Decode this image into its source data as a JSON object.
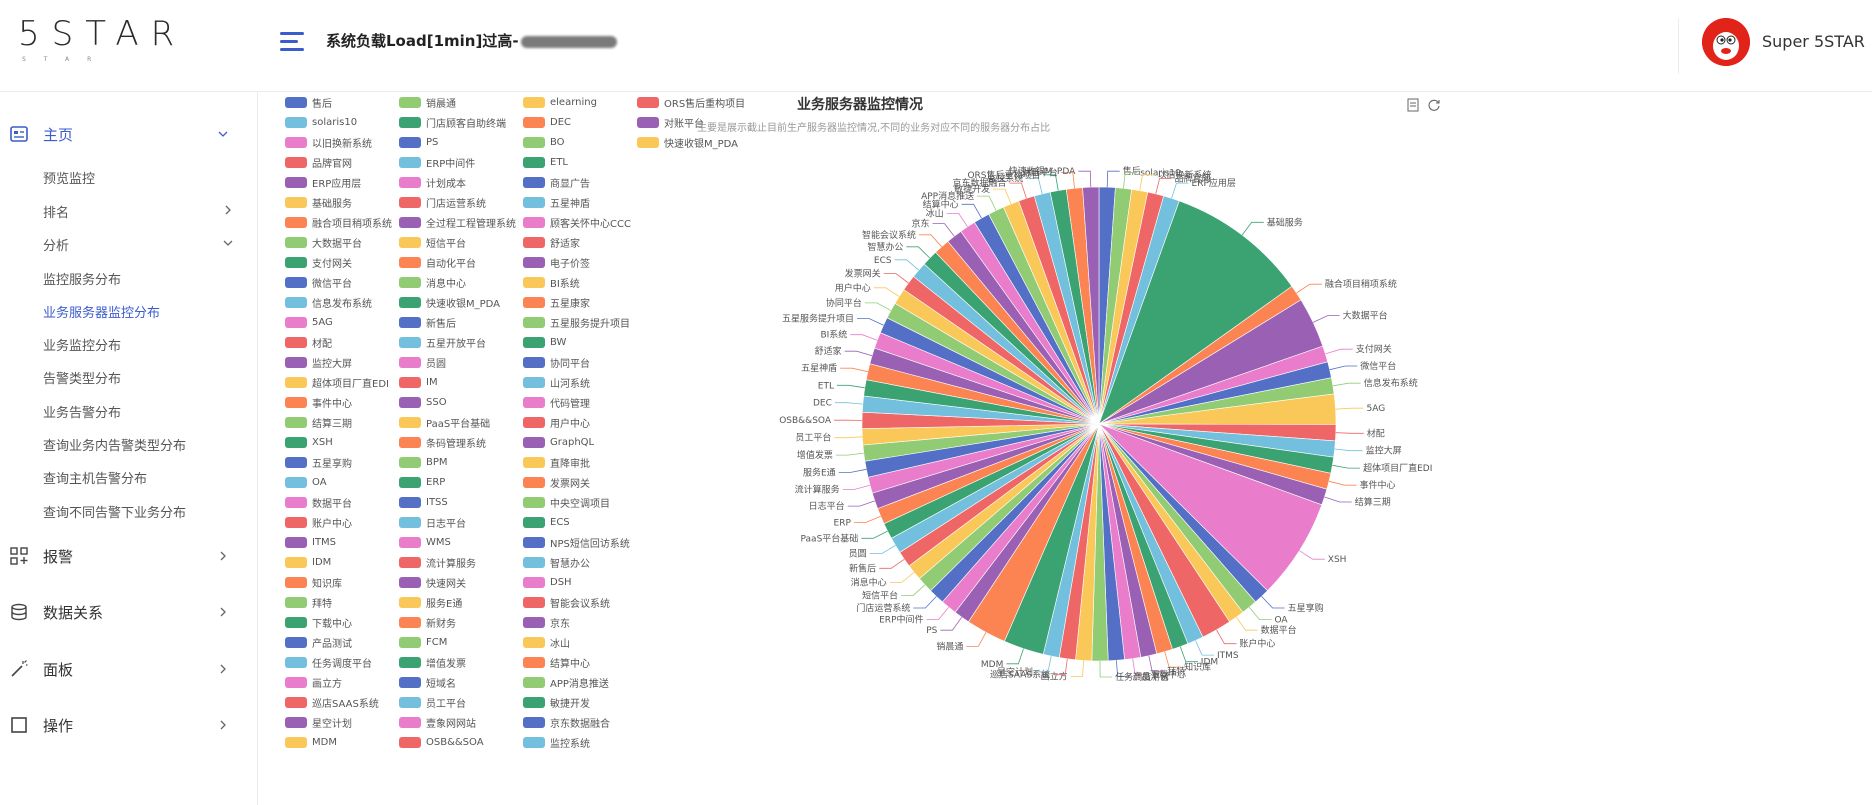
{
  "app": {
    "logo_text": "5STAR",
    "logo_sub": "STAR"
  },
  "header": {
    "alert_title": "系统负载Load[1min]过高-",
    "user_name": "Super 5STAR"
  },
  "sidebar": {
    "home_label": "主页",
    "home_items": [
      "预览监控",
      "排名",
      "分析"
    ],
    "analysis_items": [
      "监控服务分布",
      "业务服务器监控分布",
      "业务监控分布",
      "告警类型分布",
      "业务告警分布",
      "查询业务内告警类型分布",
      "查询主机告警分布",
      "查询不同告警下业务分布"
    ],
    "bottom": [
      "报警",
      "数据关系",
      "面板",
      "操作"
    ]
  },
  "chart_data": {
    "type": "pie",
    "title": "业务服务器监控情况",
    "subtitle": "主要是展示截止目前生产服务器监控情况,不同的业务对应不同的服务器分布占比",
    "labels": [
      "售后",
      "solaris10",
      "以旧换新系统",
      "品牌官网",
      "ERP应用层",
      "基础服务",
      "融合项目稍项系统",
      "大数据平台",
      "支付网关",
      "微信平台",
      "信息发布系统",
      "5AG",
      "材配",
      "监控大屏",
      "超体项目厂直EDI",
      "事件中心",
      "结算三期",
      "XSH",
      "五星享购",
      "OA",
      "数据平台",
      "账户中心",
      "ITMS",
      "IDM",
      "知识库",
      "拜特",
      "下载中心",
      "产品测试",
      "任务调度平台",
      "画立方",
      "巡店SAAS系统",
      "星空计划",
      "MDM",
      "销晨通",
      "PS",
      "ERP中间件",
      "门店运营系统",
      "短信平台",
      "消息中心",
      "新售后",
      "员圆",
      "PaaS平台基础",
      "ERP",
      "日志平台",
      "流计算服务",
      "服务E通",
      "增值发票",
      "员工平台",
      "OSB&&SOA",
      "DEC",
      "ETL",
      "五星神盾",
      "舒适家",
      "BI系统",
      "五星服务提升项目",
      "协同平台",
      "用户中心",
      "发票网关",
      "ECS",
      "智慧办公",
      "智能会议系统",
      "京东",
      "冰山",
      "结算中心",
      "APP消息推送",
      "敏捷开发",
      "京东数据融合",
      "监控系统",
      "ORS售后重构项目",
      "对账平台",
      "快速收银M_PDA"
    ],
    "legend_columns": [
      [
        "售后",
        "solaris10",
        "以旧换新系统",
        "品牌官网",
        "ERP应用层",
        "基础服务",
        "融合项目稍项系统",
        "大数据平台",
        "支付网关",
        "微信平台",
        "信息发布系统",
        "5AG",
        "材配",
        "监控大屏",
        "超体项目厂直EDI",
        "事件中心",
        "结算三期",
        "XSH",
        "五星享购",
        "OA",
        "数据平台",
        "账户中心",
        "ITMS",
        "IDM",
        "知识库",
        "拜特",
        "下载中心",
        "产品测试",
        "任务调度平台",
        "画立方",
        "巡店SAAS系统",
        "星空计划",
        "MDM"
      ],
      [
        "销晨通",
        "门店顾客自助终端",
        "PS",
        "ERP中间件",
        "计划成本",
        "门店运营系统",
        "全过程工程管理系统",
        "短信平台",
        "自动化平台",
        "消息中心",
        "快速收银M_PDA",
        "新售后",
        "五星开放平台",
        "员圆",
        "IM",
        "SSO",
        "PaaS平台基础",
        "条码管理系统",
        "BPM",
        "ERP",
        "ITSS",
        "日志平台",
        "WMS",
        "流计算服务",
        "快速网关",
        "服务E通",
        "新财务",
        "FCM",
        "增值发票",
        "短域名",
        "员工平台",
        "壹象网网站",
        "OSB&&SOA"
      ],
      [
        "elearning",
        "DEC",
        "BO",
        "ETL",
        "商显广告",
        "五星神盾",
        "顾客关怀中心CCC",
        "舒适家",
        "电子价签",
        "BI系统",
        "五星康家",
        "五星服务提升项目",
        "BW",
        "协同平台",
        "山河系统",
        "代码管理",
        "用户中心",
        "GraphQL",
        "直降审批",
        "发票网关",
        "中央空调项目",
        "ECS",
        "NPS短信回访系统",
        "智慧办公",
        "DSH",
        "智能会议系统",
        "京东",
        "冰山",
        "结算中心",
        "APP消息推送",
        "敏捷开发",
        "京东数据融合",
        "监控系统"
      ],
      [
        "ORS售后重构项目",
        "对账平台",
        "快速收银M_PDA"
      ]
    ],
    "palette": [
      "#5470c6",
      "#91cc75",
      "#fac858",
      "#ee6666",
      "#73c0de",
      "#3ba272",
      "#fc8452",
      "#9a60b4",
      "#ea7ccc"
    ]
  }
}
